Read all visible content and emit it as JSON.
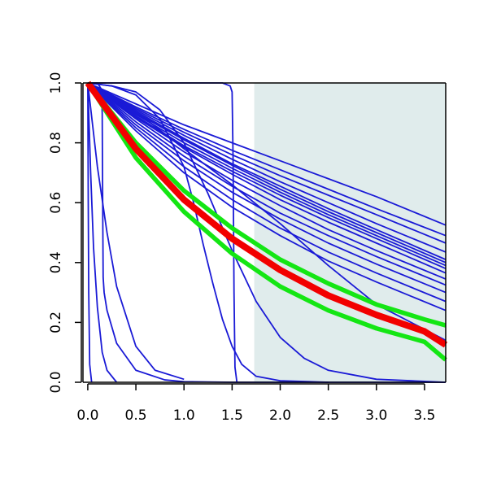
{
  "chart_data": {
    "type": "line",
    "title": "",
    "xlabel": "",
    "ylabel": "",
    "xlim": [
      -0.05,
      3.72
    ],
    "ylim": [
      0,
      1
    ],
    "grid": false,
    "legend": "none",
    "x_ticks": [
      "0.0",
      "0.5",
      "1.0",
      "1.5",
      "2.0",
      "2.5",
      "3.0",
      "3.5"
    ],
    "y_ticks": [
      "0.0",
      "0.2",
      "0.4",
      "0.6",
      "0.8",
      "1.0"
    ],
    "shaded_region": {
      "x_start": 1.73,
      "x_end": 3.72,
      "color": "#e0ecec"
    },
    "colors": {
      "blue": "#1a1ad6",
      "red": "#f20000",
      "green": "#14e614",
      "frame": "#000000"
    },
    "series": [
      {
        "color": "blue",
        "x": [
          0,
          0.5,
          1.0,
          1.5,
          2.0,
          2.5,
          3.0,
          3.72
        ],
        "y": [
          1.0,
          0.93,
          0.86,
          0.8,
          0.74,
          0.68,
          0.62,
          0.525
        ]
      },
      {
        "color": "blue",
        "x": [
          0,
          0.5,
          1.0,
          1.5,
          2.0,
          2.5,
          3.0,
          3.72
        ],
        "y": [
          1.0,
          0.92,
          0.845,
          0.775,
          0.71,
          0.645,
          0.58,
          0.49
        ]
      },
      {
        "color": "blue",
        "x": [
          0,
          0.5,
          1.0,
          1.5,
          2.0,
          2.5,
          3.0,
          3.72
        ],
        "y": [
          1.0,
          0.915,
          0.835,
          0.76,
          0.69,
          0.625,
          0.56,
          0.465
        ]
      },
      {
        "color": "blue",
        "x": [
          0,
          0.5,
          1.0,
          1.5,
          2.0,
          2.5,
          3.0,
          3.72
        ],
        "y": [
          1.0,
          0.91,
          0.825,
          0.745,
          0.67,
          0.6,
          0.53,
          0.435
        ]
      },
      {
        "color": "blue",
        "x": [
          0,
          0.5,
          1.0,
          1.5,
          2.0,
          2.5,
          3.0,
          3.72
        ],
        "y": [
          1.0,
          0.905,
          0.815,
          0.73,
          0.655,
          0.58,
          0.51,
          0.41
        ]
      },
      {
        "color": "blue",
        "x": [
          0,
          0.5,
          1.0,
          1.5,
          2.0,
          2.5,
          3.0,
          3.72
        ],
        "y": [
          1.0,
          0.9,
          0.81,
          0.725,
          0.645,
          0.57,
          0.5,
          0.4
        ]
      },
      {
        "color": "blue",
        "x": [
          0,
          0.5,
          1.0,
          1.5,
          2.0,
          2.5,
          3.0,
          3.72
        ],
        "y": [
          1.0,
          0.895,
          0.8,
          0.715,
          0.635,
          0.56,
          0.49,
          0.39
        ]
      },
      {
        "color": "blue",
        "x": [
          0,
          0.5,
          1.0,
          1.5,
          2.0,
          2.5,
          3.0,
          3.72
        ],
        "y": [
          1.0,
          0.89,
          0.79,
          0.705,
          0.625,
          0.55,
          0.48,
          0.38
        ]
      },
      {
        "color": "blue",
        "x": [
          0,
          0.5,
          1.0,
          1.5,
          2.0,
          2.5,
          3.0,
          3.72
        ],
        "y": [
          1.0,
          0.885,
          0.785,
          0.695,
          0.61,
          0.535,
          0.465,
          0.365
        ]
      },
      {
        "color": "blue",
        "x": [
          0,
          0.5,
          1.0,
          1.5,
          2.0,
          2.5,
          3.0,
          3.72
        ],
        "y": [
          1.0,
          0.88,
          0.77,
          0.675,
          0.59,
          0.51,
          0.44,
          0.345
        ]
      },
      {
        "color": "blue",
        "x": [
          0,
          0.5,
          1.0,
          1.5,
          2.0,
          2.5,
          3.0,
          3.72
        ],
        "y": [
          1.0,
          0.87,
          0.755,
          0.655,
          0.565,
          0.49,
          0.42,
          0.325
        ]
      },
      {
        "color": "blue",
        "x": [
          0,
          0.5,
          1.0,
          1.5,
          2.0,
          2.5,
          3.0,
          3.72
        ],
        "y": [
          1.0,
          0.86,
          0.74,
          0.635,
          0.545,
          0.465,
          0.395,
          0.3
        ]
      },
      {
        "color": "blue",
        "x": [
          0,
          0.5,
          1.0,
          1.5,
          2.0,
          2.5,
          3.0,
          3.72
        ],
        "y": [
          1.0,
          0.85,
          0.72,
          0.61,
          0.515,
          0.435,
          0.365,
          0.27
        ]
      },
      {
        "color": "blue",
        "x": [
          0,
          0.5,
          1.0,
          1.5,
          2.0,
          2.5,
          3.0,
          3.72
        ],
        "y": [
          1.0,
          0.84,
          0.7,
          0.585,
          0.49,
          0.405,
          0.335,
          0.24
        ]
      },
      {
        "color": "blue",
        "x": [
          0,
          0.3,
          0.6,
          1.0,
          1.5,
          2.0,
          2.5,
          3.0,
          3.72
        ],
        "y": [
          1.0,
          0.94,
          0.88,
          0.78,
          0.66,
          0.53,
          0.39,
          0.26,
          0.14
        ]
      },
      {
        "color": "blue",
        "x": [
          0,
          0.25,
          0.5,
          0.75,
          1.0,
          1.25,
          1.5,
          1.75,
          2.0,
          2.25,
          2.5,
          3.0,
          3.72
        ],
        "y": [
          1.0,
          0.99,
          0.97,
          0.91,
          0.8,
          0.63,
          0.44,
          0.27,
          0.15,
          0.08,
          0.04,
          0.01,
          0.0
        ]
      },
      {
        "color": "blue",
        "x": [
          0,
          0.25,
          0.5,
          0.75,
          1.0,
          1.1,
          1.2,
          1.3,
          1.4,
          1.5,
          1.6,
          1.75,
          2.0,
          2.5
        ],
        "y": [
          1.0,
          0.99,
          0.96,
          0.88,
          0.72,
          0.6,
          0.46,
          0.33,
          0.21,
          0.12,
          0.06,
          0.02,
          0.005,
          0.0
        ]
      },
      {
        "color": "blue",
        "x": [
          0,
          0.5,
          1.0,
          1.4,
          1.48,
          1.5,
          1.51,
          1.52,
          1.53,
          1.55
        ],
        "y": [
          1.0,
          1.0,
          1.0,
          1.0,
          0.99,
          0.97,
          0.75,
          0.3,
          0.05,
          0.0
        ]
      },
      {
        "color": "blue",
        "x": [
          0,
          0.1,
          0.14,
          0.15,
          0.155,
          0.16,
          0.17,
          0.2,
          0.3,
          0.5,
          0.8,
          1.0,
          1.5,
          3.72
        ],
        "y": [
          1.0,
          1.0,
          0.98,
          0.9,
          0.6,
          0.35,
          0.3,
          0.24,
          0.13,
          0.04,
          0.008,
          0.002,
          0.0,
          0.0
        ]
      },
      {
        "color": "blue",
        "x": [
          0,
          0.05,
          0.1,
          0.2,
          0.3,
          0.5,
          0.7,
          1.0
        ],
        "y": [
          1.0,
          0.86,
          0.72,
          0.5,
          0.32,
          0.12,
          0.04,
          0.01
        ]
      },
      {
        "color": "blue",
        "x": [
          0,
          0.03,
          0.06,
          0.1,
          0.15,
          0.2,
          0.3
        ],
        "y": [
          1.0,
          0.7,
          0.45,
          0.25,
          0.1,
          0.04,
          0.0
        ]
      },
      {
        "color": "blue",
        "x": [
          0,
          0.005,
          0.01,
          0.02,
          0.04
        ],
        "y": [
          1.0,
          0.6,
          0.3,
          0.06,
          0.0
        ]
      },
      {
        "color": "green",
        "x": [
          0,
          0.5,
          1.0,
          1.5,
          2.0,
          2.5,
          3.0,
          3.5,
          3.72
        ],
        "y": [
          1.0,
          0.8,
          0.64,
          0.515,
          0.41,
          0.33,
          0.26,
          0.21,
          0.19
        ]
      },
      {
        "color": "green",
        "x": [
          0,
          0.5,
          1.0,
          1.5,
          2.0,
          2.5,
          3.0,
          3.5,
          3.72
        ],
        "y": [
          1.0,
          0.75,
          0.57,
          0.43,
          0.32,
          0.24,
          0.18,
          0.135,
          0.075
        ]
      },
      {
        "color": "red",
        "x": [
          0,
          0.5,
          1.0,
          1.5,
          2.0,
          2.5,
          3.0,
          3.5,
          3.72
        ],
        "y": [
          1.0,
          0.78,
          0.61,
          0.48,
          0.375,
          0.29,
          0.225,
          0.17,
          0.125
        ]
      }
    ]
  }
}
